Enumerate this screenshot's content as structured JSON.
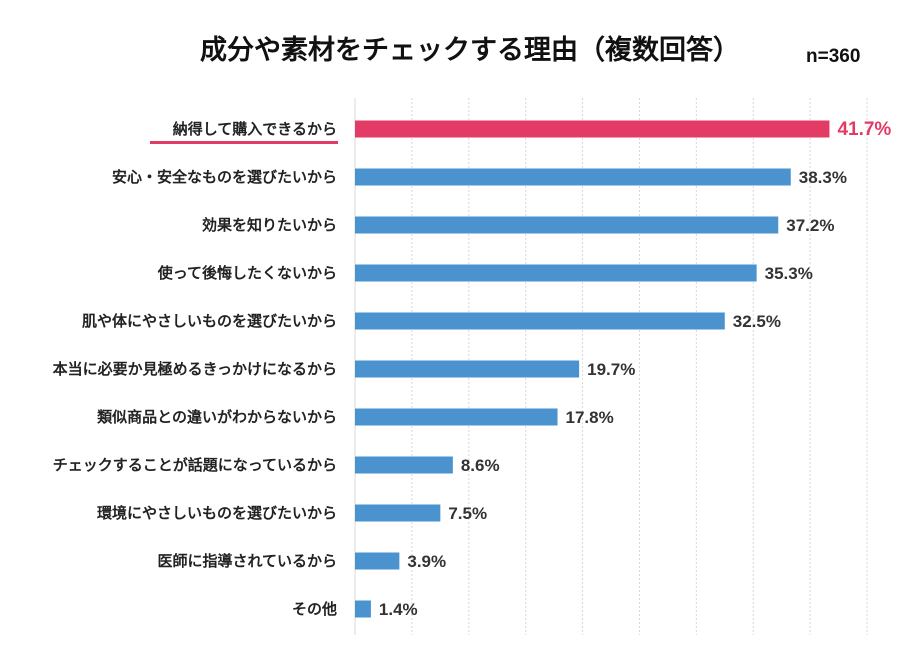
{
  "chart_data": {
    "type": "bar",
    "orientation": "horizontal",
    "title": "成分や素材をチェックする理由（複数回答）",
    "subtitle": "n=360",
    "categories": [
      "納得して購入できるから",
      "安心・安全なものを選びたいから",
      "効果を知りたいから",
      "使って後悔したくないから",
      "肌や体にやさしいものを選びたいから",
      "本当に必要か見極めるきっかけになるから",
      "類似商品との違いがわからないから",
      "チェックすることが話題になっているから",
      "環境にやさしいものを選びたいから",
      "医師に指導されているから",
      "その他"
    ],
    "values": [
      41.7,
      38.3,
      37.2,
      35.3,
      32.5,
      19.7,
      17.8,
      8.6,
      7.5,
      3.9,
      1.4
    ],
    "value_labels": [
      "41.7%",
      "38.3%",
      "37.2%",
      "35.3%",
      "32.5%",
      "19.7%",
      "17.8%",
      "8.6%",
      "7.5%",
      "3.9%",
      "1.4%"
    ],
    "xlim": [
      0,
      45
    ],
    "grid": true,
    "highlight_index": 0,
    "colors": {
      "bar": "#4a93cf",
      "highlight": "#e23b66",
      "grid": "#d8d8d8"
    }
  }
}
